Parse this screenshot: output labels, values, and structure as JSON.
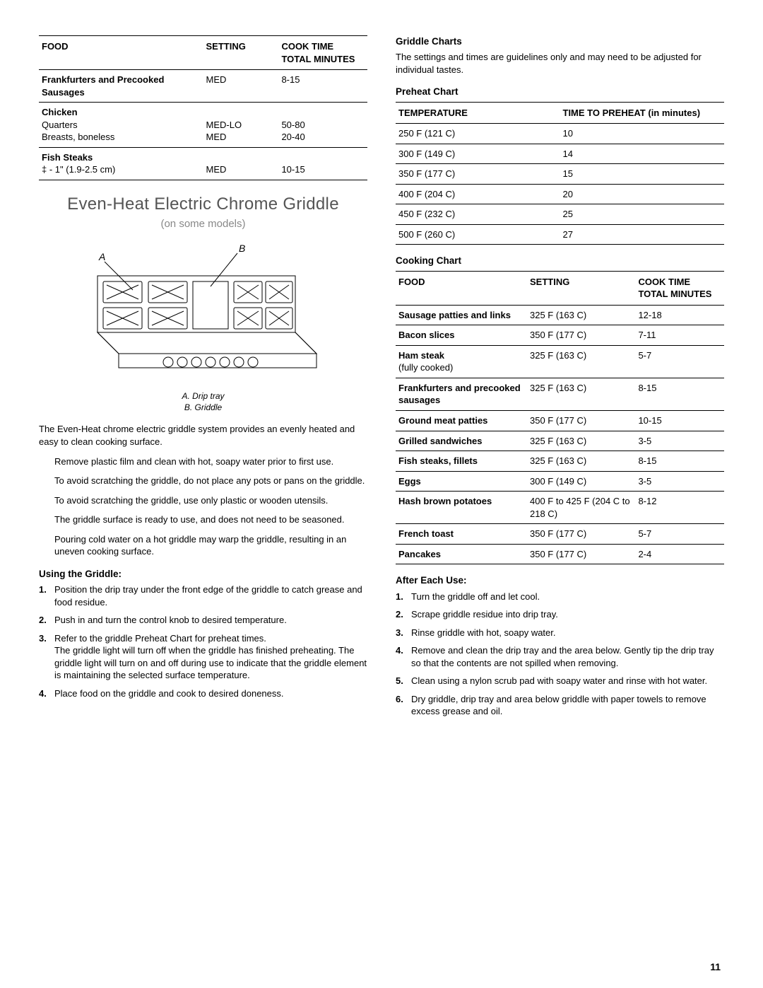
{
  "page_number": "11",
  "left": {
    "food_table": {
      "headers": [
        "FOOD",
        "SETTING",
        "COOK TIME TOTAL MINUTES"
      ],
      "rows": [
        {
          "food": "Frankfurters and Precooked Sausages",
          "setting": "MED",
          "time": "8-15"
        },
        {
          "food_bold": "Chicken",
          "sub1": "Quarters",
          "setting1": "MED-LO",
          "time1": "50-80",
          "sub2": "Breasts, boneless",
          "setting2": "MED",
          "time2": "20-40"
        },
        {
          "food_bold": "Fish Steaks",
          "sub1": "‡ - 1\" (1.9-2.5 cm)",
          "setting1": "MED",
          "time1": "10-15"
        }
      ]
    },
    "section_title": "Even-Heat  Electric Chrome Griddle",
    "section_subtitle": "(on some models)",
    "diagram_label_a": "A",
    "diagram_label_b": "B",
    "caption_a": "A. Drip tray",
    "caption_b": "B. Griddle",
    "intro": "The Even-Heat  chrome electric griddle system provides an evenly heated and easy to clean cooking surface.",
    "tips": [
      "Remove plastic film and clean with hot, soapy water prior to first use.",
      "To avoid scratching the griddle, do not place any pots or pans on the griddle.",
      "To avoid scratching the griddle, use only plastic or wooden utensils.",
      "The griddle surface is ready to use, and does not need to be seasoned.",
      "Pouring cold water on a hot griddle may warp the griddle, resulting in an uneven cooking surface."
    ],
    "using_heading": "Using the Griddle:",
    "using_steps": [
      "Position the drip tray under the front edge of the griddle to catch grease and food residue.",
      "Push in and turn the control knob to desired temperature.",
      "Refer to the griddle Preheat Chart for preheat times.\nThe griddle light will turn off when the griddle has finished preheating. The griddle light will turn on and off during use to indicate that the griddle element is maintaining the selected surface temperature.",
      "Place food on the griddle and cook to desired doneness."
    ]
  },
  "right": {
    "charts_heading": "Griddle Charts",
    "charts_intro": "The settings and times are guidelines only and may need to be adjusted for individual tastes.",
    "preheat_heading": "Preheat Chart",
    "preheat_headers": [
      "TEMPERATURE",
      "TIME TO PREHEAT (in minutes)"
    ],
    "preheat_rows": [
      {
        "t": "250 F (121 C)",
        "m": "10"
      },
      {
        "t": "300 F (149 C)",
        "m": "14"
      },
      {
        "t": "350 F (177 C)",
        "m": "15"
      },
      {
        "t": "400 F (204 C)",
        "m": "20"
      },
      {
        "t": "450 F (232 C)",
        "m": "25"
      },
      {
        "t": "500 F (260 C)",
        "m": "27"
      }
    ],
    "cooking_heading": "Cooking Chart",
    "cooking_headers": [
      "FOOD",
      "SETTING",
      "COOK TIME TOTAL MINUTES"
    ],
    "cooking_rows": [
      {
        "f": "Sausage patties and links",
        "s": "325 F (163 C)",
        "t": "12-18"
      },
      {
        "f": "Bacon slices",
        "s": "350 F (177 C)",
        "t": "7-11"
      },
      {
        "f": "Ham steak",
        "fsub": "(fully cooked)",
        "s": "325 F (163 C)",
        "t": "5-7"
      },
      {
        "f": "Frankfurters and precooked sausages",
        "s": "325 F (163 C)",
        "t": "8-15"
      },
      {
        "f": "Ground meat patties",
        "s": "350 F (177 C)",
        "t": "10-15"
      },
      {
        "f": "Grilled sandwiches",
        "s": "325 F (163 C)",
        "t": "3-5"
      },
      {
        "f": "Fish steaks, fillets",
        "s": "325 F (163 C)",
        "t": "8-15"
      },
      {
        "f": "Eggs",
        "s": "300 F (149 C)",
        "t": "3-5"
      },
      {
        "f": "Hash brown potatoes",
        "s": "400 F to 425 F (204 C to 218 C)",
        "t": "8-12"
      },
      {
        "f": "French toast",
        "s": "350 F (177 C)",
        "t": "5-7"
      },
      {
        "f": "Pancakes",
        "s": "350 F (177 C)",
        "t": "2-4"
      }
    ],
    "after_heading": "After Each Use:",
    "after_steps": [
      "Turn the griddle off and let cool.",
      "Scrape griddle residue into drip tray.",
      "Rinse griddle with hot, soapy water.",
      "Remove and clean the drip tray and the area below. Gently tip the drip tray so that the contents are not spilled when removing.",
      "Clean using a nylon scrub pad with soapy water and rinse with hot water.",
      "Dry griddle, drip tray and  area below griddle with paper towels to remove excess grease and oil."
    ]
  }
}
